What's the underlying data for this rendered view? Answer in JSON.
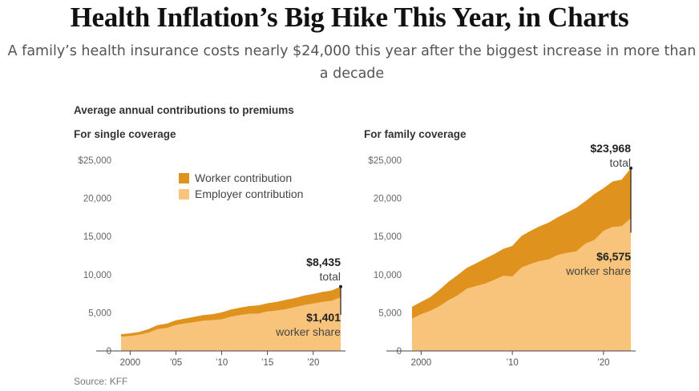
{
  "headline": "Health Inflation’s Big Hike This Year, in Charts",
  "dek": "A family’s health insurance costs nearly $24,000 this year after the biggest increase in more than a decade",
  "supertitle": "Average annual contributions to premiums",
  "source": "Source: KFF",
  "colors": {
    "worker": "#e0921f",
    "employer": "#f8c47c",
    "axis": "#666666"
  },
  "legend": [
    {
      "label": "Worker contribution",
      "color": "#e0921f"
    },
    {
      "label": "Employer contribution",
      "color": "#f8c47c"
    }
  ],
  "chart_data": [
    {
      "type": "area",
      "stacked": true,
      "title": "For single coverage",
      "x": [
        1999,
        2000,
        2001,
        2002,
        2003,
        2004,
        2005,
        2006,
        2007,
        2008,
        2009,
        2010,
        2011,
        2012,
        2013,
        2014,
        2015,
        2016,
        2017,
        2018,
        2019,
        2020,
        2021,
        2022,
        2023
      ],
      "series": [
        {
          "name": "Employer contribution",
          "values": [
            1878,
            1975,
            2137,
            2408,
            2875,
            3021,
            3413,
            3615,
            3785,
            3983,
            4045,
            4150,
            4508,
            4716,
            4885,
            4895,
            5179,
            5306,
            5477,
            5746,
            6017,
            6227,
            6440,
            6584,
            7034
          ]
        },
        {
          "name": "Worker contribution",
          "values": [
            318,
            334,
            355,
            454,
            508,
            558,
            610,
            627,
            694,
            721,
            779,
            899,
            921,
            951,
            999,
            1081,
            1071,
            1129,
            1213,
            1186,
            1242,
            1243,
            1299,
            1327,
            1401
          ]
        }
      ],
      "ylim": [
        0,
        25000
      ],
      "yticks": [
        "$25,000",
        "20,000",
        "15,000",
        "10,000",
        "5,000",
        "0"
      ],
      "xticks": [
        "2000",
        "’05",
        "’10",
        "’15",
        "’20"
      ],
      "annotations": {
        "total_value": "$8,435",
        "total_label": "total",
        "worker_value": "$1,401",
        "worker_label": "worker share"
      }
    },
    {
      "type": "area",
      "stacked": true,
      "title": "For family coverage",
      "x": [
        1999,
        2000,
        2001,
        2002,
        2003,
        2004,
        2005,
        2006,
        2007,
        2008,
        2009,
        2010,
        2011,
        2012,
        2013,
        2014,
        2015,
        2016,
        2017,
        2018,
        2019,
        2020,
        2021,
        2022,
        2023
      ],
      "series": [
        {
          "name": "Employer contribution",
          "values": [
            4247,
            4819,
            5269,
            5866,
            6657,
            7289,
            8167,
            8508,
            8824,
            9325,
            9860,
            9773,
            10944,
            11429,
            11786,
            12011,
            12591,
            12865,
            13049,
            14069,
            14561,
            15754,
            16253,
            16357,
            17393
          ]
        },
        {
          "name": "Worker contribution",
          "values": [
            1543,
            1619,
            1787,
            2137,
            2412,
            2661,
            2713,
            2973,
            3281,
            3354,
            3515,
            3997,
            4129,
            4316,
            4565,
            4823,
            4955,
            5277,
            5714,
            5547,
            6015,
            5588,
            5969,
            6106,
            6575
          ]
        }
      ],
      "ylim": [
        0,
        25000
      ],
      "yticks": [
        "$25,000",
        "20,000",
        "15,000",
        "10,000",
        "5,000",
        "0"
      ],
      "xticks": [
        "2000",
        "’10",
        "’20"
      ],
      "annotations": {
        "total_value": "$23,968",
        "total_label": "total",
        "worker_value": "$6,575",
        "worker_label": "worker share"
      }
    }
  ]
}
